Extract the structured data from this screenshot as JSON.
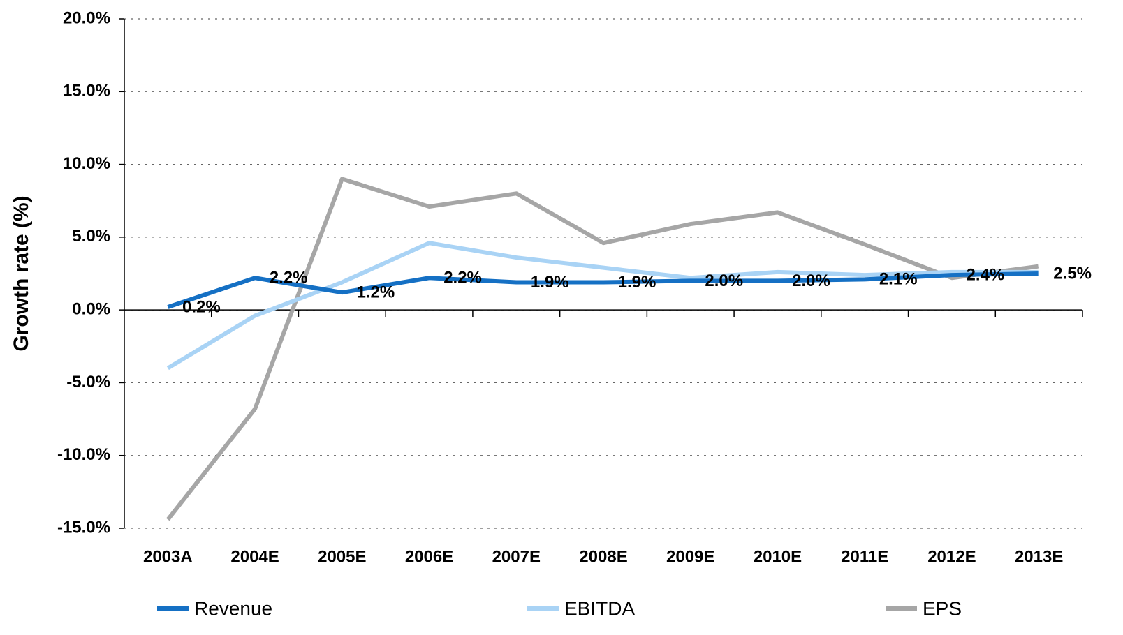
{
  "chart_data": {
    "type": "line",
    "y_label": "Growth rate (%)",
    "categories": [
      "2003A",
      "2004E",
      "2005E",
      "2006E",
      "2007E",
      "2008E",
      "2009E",
      "2010E",
      "2011E",
      "2012E",
      "2013E"
    ],
    "series": [
      {
        "name": "Revenue",
        "color": "#1570c4",
        "values": [
          0.2,
          2.2,
          1.2,
          2.2,
          1.9,
          1.9,
          2.0,
          2.0,
          2.1,
          2.4,
          2.5
        ],
        "value_labels": [
          "0.2%",
          "2.2%",
          "1.2%",
          "2.2%",
          "1.9%",
          "1.9%",
          "2.0%",
          "2.0%",
          "2.1%",
          "2.4%",
          "2.5%"
        ]
      },
      {
        "name": "EBITDA",
        "color": "#a9d3f5",
        "values": [
          -4.0,
          -0.4,
          1.9,
          4.6,
          3.6,
          2.9,
          2.2,
          2.6,
          2.4,
          2.6,
          2.6
        ]
      },
      {
        "name": "EPS",
        "color": "#a6a6a6",
        "values": [
          -14.4,
          -6.8,
          9.0,
          7.1,
          8.0,
          4.6,
          5.9,
          6.7,
          4.5,
          2.2,
          3.0
        ]
      }
    ],
    "ylim": [
      -15,
      20
    ],
    "yticks": [
      {
        "value": -15,
        "label": "-15.0%"
      },
      {
        "value": -10,
        "label": "-10.0%"
      },
      {
        "value": -5,
        "label": "-5.0%"
      },
      {
        "value": 0,
        "label": "0.0%"
      },
      {
        "value": 5,
        "label": "5.0%"
      },
      {
        "value": 10,
        "label": "10.0%"
      },
      {
        "value": 15,
        "label": "15.0%"
      },
      {
        "value": 20,
        "label": "20.0%"
      }
    ],
    "grid": true,
    "legend": "bottom"
  }
}
